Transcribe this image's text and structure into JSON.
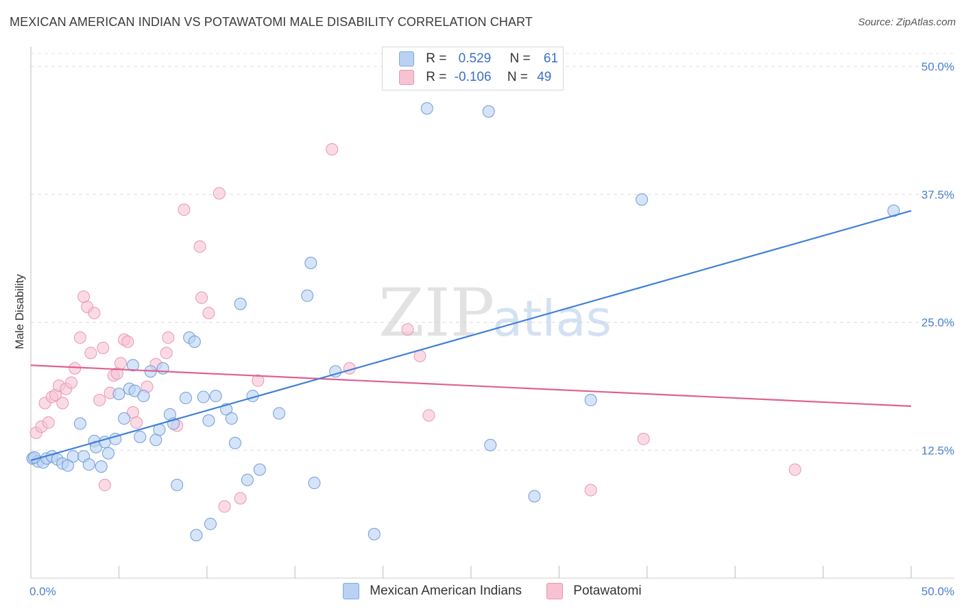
{
  "title": "MEXICAN AMERICAN INDIAN VS POTAWATOMI MALE DISABILITY CORRELATION CHART",
  "source": "Source: ZipAtlas.com",
  "watermark": {
    "zip": "ZIP",
    "atlas": "atlas"
  },
  "colors": {
    "blue": "#3f7fd8",
    "blue_fill": "#b9d2f3",
    "pink": "#e0608d",
    "pink_fill": "#f7c3d3",
    "grid": "#dddddd",
    "tick_label": "#4a7fd0"
  },
  "legend": {
    "rows": [
      {
        "r_label": "R =",
        "r_value": "0.529",
        "n_label": "N =",
        "n_value": "61"
      },
      {
        "r_label": "R =",
        "r_value": "-0.106",
        "n_label": "N =",
        "n_value": "49"
      }
    ]
  },
  "chart_data": {
    "type": "scatter",
    "title": "MEXICAN AMERICAN INDIAN VS POTAWATOMI MALE DISABILITY CORRELATION CHART",
    "xlabel": "",
    "ylabel": "Male Disability",
    "xlim": [
      0,
      50
    ],
    "ylim": [
      0,
      50
    ],
    "x_tick_labels": [
      "0.0%",
      "50.0%"
    ],
    "y_ticks": [
      12.5,
      25.0,
      37.5,
      50.0
    ],
    "y_tick_labels": [
      "12.5%",
      "25.0%",
      "37.5%",
      "50.0%"
    ],
    "grid": "horizontal dashed",
    "legend_position": "top-center",
    "series": [
      {
        "name": "Mexican American Indians",
        "color": "#3f7fd8",
        "trend": {
          "x": [
            0,
            50
          ],
          "y": [
            11.5,
            35.9
          ]
        },
        "points": [
          [
            0.1,
            11.7
          ],
          [
            0.4,
            11.4
          ],
          [
            0.7,
            11.3
          ],
          [
            0.9,
            11.7
          ],
          [
            1.2,
            11.9
          ],
          [
            1.5,
            11.6
          ],
          [
            1.8,
            11.2
          ],
          [
            2.1,
            11.0
          ],
          [
            2.4,
            11.9
          ],
          [
            2.8,
            15.1
          ],
          [
            3.0,
            11.9
          ],
          [
            3.3,
            11.1
          ],
          [
            3.6,
            13.4
          ],
          [
            3.7,
            12.8
          ],
          [
            4.0,
            10.9
          ],
          [
            4.2,
            13.3
          ],
          [
            4.4,
            12.2
          ],
          [
            4.8,
            13.6
          ],
          [
            5.0,
            18.0
          ],
          [
            5.3,
            15.6
          ],
          [
            5.6,
            18.5
          ],
          [
            5.8,
            20.8
          ],
          [
            5.9,
            18.3
          ],
          [
            6.2,
            13.8
          ],
          [
            6.4,
            17.8
          ],
          [
            6.8,
            20.2
          ],
          [
            7.1,
            13.5
          ],
          [
            7.3,
            14.5
          ],
          [
            7.5,
            20.5
          ],
          [
            7.9,
            16.0
          ],
          [
            8.1,
            15.1
          ],
          [
            8.3,
            9.1
          ],
          [
            8.8,
            17.6
          ],
          [
            9.0,
            23.5
          ],
          [
            9.3,
            23.1
          ],
          [
            9.4,
            4.2
          ],
          [
            9.8,
            17.7
          ],
          [
            10.1,
            15.4
          ],
          [
            10.2,
            5.3
          ],
          [
            10.5,
            17.8
          ],
          [
            11.1,
            16.5
          ],
          [
            11.4,
            15.6
          ],
          [
            11.6,
            13.2
          ],
          [
            11.9,
            26.8
          ],
          [
            12.3,
            9.6
          ],
          [
            12.6,
            17.8
          ],
          [
            13.0,
            10.6
          ],
          [
            14.1,
            16.1
          ],
          [
            15.7,
            27.6
          ],
          [
            15.9,
            30.8
          ],
          [
            16.1,
            9.3
          ],
          [
            17.3,
            20.2
          ],
          [
            19.5,
            4.3
          ],
          [
            22.5,
            45.9
          ],
          [
            26.0,
            45.6
          ],
          [
            26.1,
            13.0
          ],
          [
            28.6,
            8.0
          ],
          [
            31.8,
            17.4
          ],
          [
            34.7,
            37.0
          ],
          [
            49.0,
            35.9
          ],
          [
            0.2,
            11.8
          ]
        ]
      },
      {
        "name": "Potawatomi",
        "color": "#e0608d",
        "trend": {
          "x": [
            0,
            50
          ],
          "y": [
            20.8,
            16.8
          ]
        },
        "points": [
          [
            0.1,
            11.7
          ],
          [
            0.3,
            14.2
          ],
          [
            0.6,
            14.8
          ],
          [
            0.8,
            17.1
          ],
          [
            1.0,
            15.2
          ],
          [
            1.2,
            17.7
          ],
          [
            1.4,
            17.9
          ],
          [
            1.6,
            18.8
          ],
          [
            1.8,
            17.1
          ],
          [
            2.0,
            18.5
          ],
          [
            2.3,
            19.1
          ],
          [
            2.5,
            20.5
          ],
          [
            2.8,
            23.5
          ],
          [
            3.0,
            27.5
          ],
          [
            3.2,
            26.5
          ],
          [
            3.4,
            22.0
          ],
          [
            3.6,
            25.9
          ],
          [
            3.9,
            17.4
          ],
          [
            4.1,
            22.5
          ],
          [
            4.2,
            9.1
          ],
          [
            4.5,
            18.1
          ],
          [
            4.7,
            19.8
          ],
          [
            4.9,
            20.0
          ],
          [
            5.1,
            21.0
          ],
          [
            5.3,
            23.3
          ],
          [
            5.5,
            23.1
          ],
          [
            5.8,
            16.2
          ],
          [
            6.0,
            15.2
          ],
          [
            6.6,
            18.7
          ],
          [
            7.1,
            20.9
          ],
          [
            7.7,
            22.0
          ],
          [
            7.8,
            23.5
          ],
          [
            8.3,
            14.9
          ],
          [
            8.7,
            36.0
          ],
          [
            9.6,
            32.4
          ],
          [
            9.7,
            27.4
          ],
          [
            10.1,
            25.9
          ],
          [
            10.7,
            37.6
          ],
          [
            11.0,
            7.0
          ],
          [
            11.9,
            7.8
          ],
          [
            12.9,
            19.3
          ],
          [
            17.1,
            41.9
          ],
          [
            18.1,
            20.5
          ],
          [
            21.4,
            24.3
          ],
          [
            22.1,
            21.7
          ],
          [
            22.6,
            15.9
          ],
          [
            31.8,
            8.6
          ],
          [
            34.8,
            13.6
          ],
          [
            43.4,
            10.6
          ]
        ]
      }
    ]
  },
  "bottom_legend": [
    {
      "label": "Mexican American Indians"
    },
    {
      "label": "Potawatomi"
    }
  ]
}
